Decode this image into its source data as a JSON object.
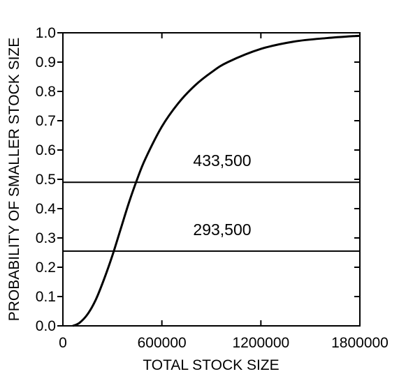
{
  "chart_data": {
    "type": "line",
    "xlabel": "TOTAL STOCK SIZE",
    "ylabel": "PROBABILITY OF SMALLER STOCK SIZE",
    "xlim": [
      0,
      1800000
    ],
    "ylim": [
      0,
      1.0
    ],
    "x_ticks": [
      0,
      600000,
      1200000,
      1800000
    ],
    "x_tick_labels": [
      "0",
      "600000",
      "1200000",
      "1800000"
    ],
    "y_ticks": [
      0.0,
      0.1,
      0.2,
      0.3,
      0.4,
      0.5,
      0.6,
      0.7,
      0.8,
      0.9,
      1.0
    ],
    "y_tick_labels": [
      "0.0",
      "0.1",
      "0.2",
      "0.3",
      "0.4",
      "0.5",
      "0.6",
      "0.7",
      "0.8",
      "0.9",
      "1.0"
    ],
    "grid": false,
    "series": [
      {
        "x": [
          60000,
          100000,
          150000,
          200000,
          250000,
          300000,
          350000,
          400000,
          450000,
          500000,
          600000,
          700000,
          800000,
          900000,
          1000000,
          1200000,
          1400000,
          1600000,
          1800000
        ],
        "y": [
          0.0,
          0.01,
          0.04,
          0.09,
          0.16,
          0.24,
          0.33,
          0.42,
          0.5,
          0.57,
          0.68,
          0.76,
          0.82,
          0.865,
          0.9,
          0.945,
          0.97,
          0.982,
          0.99
        ]
      }
    ],
    "reference_lines": [
      {
        "y": 0.49,
        "label": "433,500"
      },
      {
        "y": 0.255,
        "label": "293,500"
      }
    ]
  }
}
